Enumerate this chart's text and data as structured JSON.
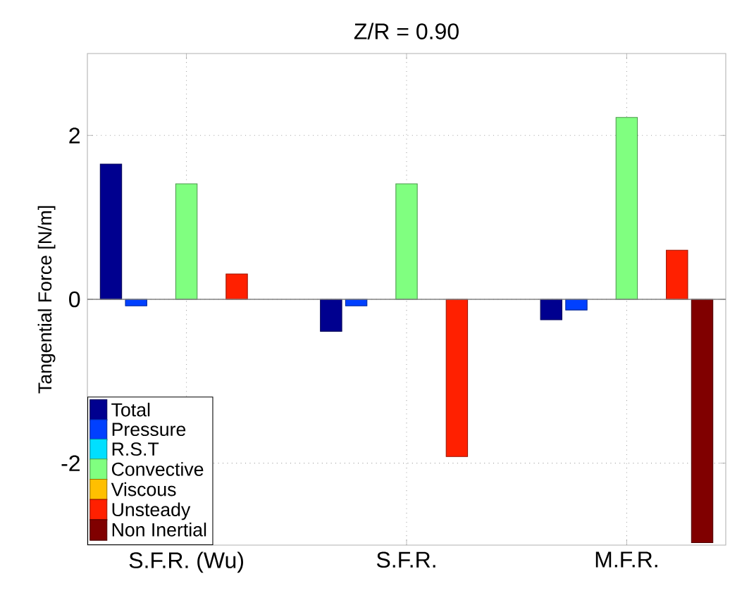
{
  "chart_data": {
    "type": "bar",
    "title": "Z/R = 0.90",
    "ylabel": "Tangential Force [N/m]",
    "categories": [
      "S.F.R. (Wu)",
      "S.F.R.",
      "M.F.R."
    ],
    "series": [
      {
        "name": "Total",
        "color": "#00008f",
        "values": [
          1.65,
          -0.39,
          -0.25
        ]
      },
      {
        "name": "Pressure",
        "color": "#0040ff",
        "values": [
          -0.08,
          -0.08,
          -0.13
        ]
      },
      {
        "name": "R.S.T",
        "color": "#00dfff",
        "values": [
          null,
          null,
          null
        ]
      },
      {
        "name": "Convective",
        "color": "#80ff80",
        "values": [
          1.41,
          1.41,
          2.22
        ]
      },
      {
        "name": "Viscous",
        "color": "#ffbf00",
        "values": [
          null,
          null,
          null
        ]
      },
      {
        "name": "Unsteady",
        "color": "#ff2000",
        "values": [
          0.31,
          -1.92,
          0.6
        ]
      },
      {
        "name": "Non Inertial",
        "color": "#800000",
        "values": [
          null,
          null,
          -2.97
        ]
      }
    ],
    "ylim": [
      -3,
      3
    ],
    "yticks": [
      -2,
      0,
      2
    ],
    "grid": true,
    "legend": "bottom left",
    "ref_lines": [
      {
        "axis": "y",
        "value": 0,
        "color": "#808080"
      }
    ]
  }
}
